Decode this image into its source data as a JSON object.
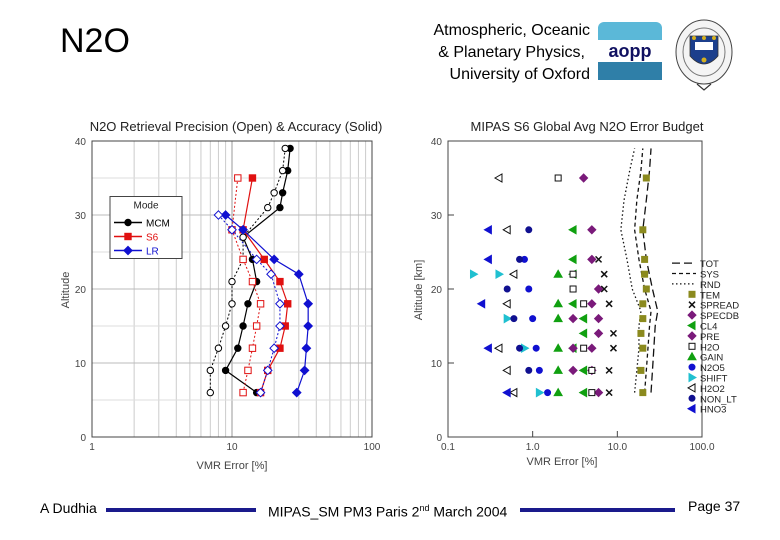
{
  "header": {
    "topic": "N2O",
    "institution_lines": [
      "Atmospheric, Oceanic",
      "& Planetary Physics,",
      "University of Oxford"
    ],
    "logo_text": "aopp"
  },
  "footer": {
    "author": "A Dudhia",
    "event": "MIPAS_SM PM3 Paris 2",
    "event_sup": "nd",
    "event_tail": " March 2004",
    "page": "Page 37"
  },
  "colors": {
    "black": "#000000",
    "red": "#e01010",
    "blue": "#1010d0",
    "olive": "#8b8a1e",
    "purple": "#7a1a7a",
    "green": "#10a010",
    "cyan": "#20c0d0",
    "navy": "#101090",
    "footer_line": "#1a1a8c"
  },
  "chart_data": [
    {
      "type": "line",
      "title": "N2O Retrieval Precision (Open) & Accuracy (Solid)",
      "xlabel": "VMR Error [%]",
      "ylabel": "Altitude",
      "xscale": "log",
      "xlim": [
        1,
        100
      ],
      "ylim": [
        0,
        40
      ],
      "xticks": [
        "1",
        "10",
        "100"
      ],
      "yticks": [
        "0",
        "10",
        "20",
        "30",
        "40"
      ],
      "grid": true,
      "legend": {
        "title": "Mode",
        "placement": "top-left"
      },
      "series": [
        {
          "name": "MCM",
          "color": "#000000",
          "marker": "circle",
          "accuracy": [
            [
              15,
              6
            ],
            [
              9,
              9
            ],
            [
              11,
              12
            ],
            [
              12,
              15
            ],
            [
              13,
              18
            ],
            [
              15,
              21
            ],
            [
              14,
              24
            ],
            [
              12,
              27
            ],
            [
              22,
              31
            ],
            [
              23,
              33
            ],
            [
              25,
              36
            ],
            [
              26,
              39
            ]
          ],
          "precision": [
            [
              7,
              6
            ],
            [
              7,
              9
            ],
            [
              8,
              12
            ],
            [
              9,
              15
            ],
            [
              10,
              18
            ],
            [
              10,
              21
            ],
            [
              12,
              24
            ],
            [
              12,
              27
            ],
            [
              18,
              31
            ],
            [
              20,
              33
            ],
            [
              23,
              36
            ],
            [
              24,
              39
            ]
          ]
        },
        {
          "name": "S6",
          "color": "#e01010",
          "marker": "square",
          "accuracy": [
            [
              16,
              6
            ],
            [
              18,
              9
            ],
            [
              22,
              12
            ],
            [
              24,
              15
            ],
            [
              25,
              18
            ],
            [
              22,
              21
            ],
            [
              17,
              24
            ],
            [
              12,
              28
            ],
            [
              14,
              35
            ]
          ],
          "precision": [
            [
              12,
              6
            ],
            [
              13,
              9
            ],
            [
              14,
              12
            ],
            [
              15,
              15
            ],
            [
              16,
              18
            ],
            [
              14,
              21
            ],
            [
              12,
              24
            ],
            [
              10,
              28
            ],
            [
              11,
              35
            ]
          ]
        },
        {
          "name": "LR",
          "color": "#1010d0",
          "marker": "diamond",
          "accuracy": [
            [
              29,
              6
            ],
            [
              33,
              9
            ],
            [
              34,
              12
            ],
            [
              35,
              15
            ],
            [
              35,
              18
            ],
            [
              30,
              22
            ],
            [
              20,
              24
            ],
            [
              12,
              28
            ],
            [
              9,
              30
            ]
          ],
          "precision": [
            [
              16,
              6
            ],
            [
              18,
              9
            ],
            [
              20,
              12
            ],
            [
              22,
              15
            ],
            [
              22,
              18
            ],
            [
              19,
              22
            ],
            [
              15,
              24
            ],
            [
              10,
              28
            ],
            [
              8,
              30
            ]
          ]
        }
      ]
    },
    {
      "type": "scatter",
      "title": "MIPAS S6 Global Avg N2O Error Budget",
      "xlabel": "VMR Error [%]",
      "ylabel": "Altitude [km]",
      "xscale": "log",
      "xlim": [
        0.1,
        100
      ],
      "ylim": [
        0,
        40
      ],
      "xticks": [
        "0.1",
        "1.0",
        "10.0",
        "100.0"
      ],
      "yticks": [
        "0",
        "10",
        "20",
        "30",
        "40"
      ],
      "grid": false,
      "legend": {
        "placement": "right"
      },
      "lines": [
        {
          "name": "TOT",
          "style": "long-dash",
          "values": [
            [
              25,
              6
            ],
            [
              26,
              9
            ],
            [
              27,
              12
            ],
            [
              28,
              15
            ],
            [
              30,
              17
            ],
            [
              26,
              20
            ],
            [
              22,
              24
            ],
            [
              20,
              28
            ],
            [
              22,
              32
            ],
            [
              24,
              36
            ],
            [
              25,
              39
            ]
          ]
        },
        {
          "name": "SYS",
          "style": "dash",
          "values": [
            [
              21,
              6
            ],
            [
              22,
              9
            ],
            [
              23,
              12
            ],
            [
              24,
              15
            ],
            [
              25,
              17
            ],
            [
              21,
              20
            ],
            [
              18,
              24
            ],
            [
              16,
              28
            ],
            [
              17,
              32
            ],
            [
              19,
              36
            ],
            [
              20,
              39
            ]
          ]
        },
        {
          "name": "RND",
          "style": "dot",
          "values": [
            [
              16,
              6
            ],
            [
              17,
              9
            ],
            [
              18,
              12
            ],
            [
              18,
              15
            ],
            [
              19,
              17
            ],
            [
              15,
              20
            ],
            [
              13,
              24
            ],
            [
              11,
              28
            ],
            [
              12,
              32
            ],
            [
              14,
              36
            ],
            [
              16,
              39
            ]
          ]
        }
      ],
      "series": [
        {
          "name": "TEM",
          "color": "#8b8a1e",
          "marker": "square-filled",
          "values": [
            [
              20,
              6
            ],
            [
              19,
              9
            ],
            [
              20,
              12
            ],
            [
              19,
              14
            ],
            [
              20,
              16
            ],
            [
              20,
              18
            ],
            [
              22,
              20
            ],
            [
              21,
              22
            ],
            [
              21,
              24
            ],
            [
              20,
              28
            ],
            [
              22,
              35
            ]
          ]
        },
        {
          "name": "SPREAD",
          "color": "#101010",
          "marker": "x",
          "values": [
            [
              8,
              6
            ],
            [
              8,
              9
            ],
            [
              9,
              12
            ],
            [
              9,
              14
            ],
            [
              8,
              18
            ],
            [
              7,
              20
            ],
            [
              7,
              22
            ],
            [
              6,
              24
            ]
          ]
        },
        {
          "name": "SPECDB",
          "color": "#7a1a7a",
          "marker": "diamond-filled",
          "values": [
            [
              6,
              6
            ],
            [
              5,
              9
            ],
            [
              5,
              12
            ],
            [
              6,
              14
            ],
            [
              6,
              16
            ],
            [
              5,
              18
            ],
            [
              6,
              20
            ],
            [
              5,
              24
            ],
            [
              5,
              28
            ],
            [
              4,
              35
            ]
          ]
        },
        {
          "name": "CL4",
          "color": "#10a010",
          "marker": "triangle-left-filled",
          "values": [
            [
              4,
              6
            ],
            [
              4,
              9
            ],
            [
              3,
              12
            ],
            [
              4,
              14
            ],
            [
              4,
              16
            ],
            [
              3,
              18
            ],
            [
              3,
              22
            ],
            [
              3,
              24
            ],
            [
              3,
              28
            ]
          ]
        },
        {
          "name": "PRE",
          "color": "#7a1a7a",
          "marker": "diamond-filled",
          "values": [
            [
              3,
              9
            ],
            [
              3,
              12
            ],
            [
              3,
              16
            ]
          ]
        },
        {
          "name": "H2O",
          "color": "#101010",
          "marker": "square-open",
          "values": [
            [
              5,
              6
            ],
            [
              5,
              9
            ],
            [
              4,
              12
            ],
            [
              4,
              18
            ],
            [
              3,
              20
            ],
            [
              3,
              22
            ],
            [
              2,
              35
            ]
          ]
        },
        {
          "name": "GAIN",
          "color": "#10a010",
          "marker": "triangle-up-filled",
          "values": [
            [
              2,
              6
            ],
            [
              2,
              9
            ],
            [
              2,
              12
            ],
            [
              2,
              16
            ],
            [
              2,
              18
            ],
            [
              2,
              22
            ]
          ]
        },
        {
          "name": "N2O5",
          "color": "#1010d0",
          "marker": "circle-filled",
          "values": [
            [
              1.5,
              6
            ],
            [
              1.2,
              9
            ],
            [
              1.1,
              12
            ],
            [
              1,
              16
            ],
            [
              0.9,
              20
            ],
            [
              0.8,
              24
            ]
          ]
        },
        {
          "name": "SHIFT",
          "color": "#20c0d0",
          "marker": "triangle-right-filled",
          "values": [
            [
              1.2,
              6
            ],
            [
              0.8,
              12
            ],
            [
              0.5,
              16
            ],
            [
              0.4,
              22
            ],
            [
              0.2,
              22
            ]
          ]
        },
        {
          "name": "H2O2",
          "color": "#101010",
          "marker": "triangle-left-open",
          "values": [
            [
              0.6,
              6
            ],
            [
              0.5,
              9
            ],
            [
              0.4,
              12
            ],
            [
              0.5,
              18
            ],
            [
              0.6,
              22
            ],
            [
              0.5,
              28
            ],
            [
              0.4,
              35
            ]
          ]
        },
        {
          "name": "NON_LT",
          "color": "#101090",
          "marker": "circle-filled",
          "values": [
            [
              0.9,
              9
            ],
            [
              0.7,
              12
            ],
            [
              0.6,
              16
            ],
            [
              0.5,
              20
            ],
            [
              0.7,
              24
            ],
            [
              0.9,
              28
            ]
          ]
        },
        {
          "name": "HNO3",
          "color": "#1010d0",
          "marker": "triangle-left-filled",
          "values": [
            [
              0.5,
              6
            ],
            [
              0.3,
              12
            ],
            [
              0.25,
              18
            ],
            [
              0.3,
              24
            ],
            [
              0.3,
              28
            ]
          ]
        }
      ]
    }
  ]
}
